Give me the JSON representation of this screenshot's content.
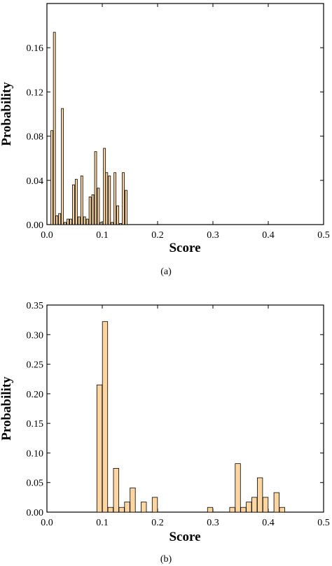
{
  "chart_data": [
    {
      "type": "bar",
      "caption": "(a)",
      "xlabel": "Score",
      "ylabel": "Probability",
      "xlim": [
        0,
        0.5
      ],
      "ylim": [
        0,
        0.2
      ],
      "xticks": [
        "0.0",
        "0.1",
        "0.2",
        "0.3",
        "0.4",
        "0.5"
      ],
      "yticks": [
        "0.00",
        "0.04",
        "0.08",
        "0.12",
        "0.16"
      ],
      "bar_width": 0.0038,
      "bar_color": "#fcd5a0",
      "x": [
        0.009,
        0.0135,
        0.018,
        0.023,
        0.028,
        0.033,
        0.038,
        0.043,
        0.048,
        0.053,
        0.058,
        0.063,
        0.068,
        0.073,
        0.078,
        0.083,
        0.088,
        0.093,
        0.098,
        0.104,
        0.108,
        0.113,
        0.118,
        0.123,
        0.128,
        0.133,
        0.138,
        0.143,
        0.148
      ],
      "values": [
        0.085,
        0.174,
        0.008,
        0.01,
        0.105,
        0.002,
        0.005,
        0.005,
        0.036,
        0.041,
        0.007,
        0.044,
        0.007,
        0.005,
        0.025,
        0.027,
        0.066,
        0.033,
        0.002,
        0.069,
        0.047,
        0.044,
        0.002,
        0.047,
        0.017,
        0.001,
        0.047,
        0.031,
        0.0
      ]
    },
    {
      "type": "bar",
      "caption": "(b)",
      "xlabel": "Score",
      "ylabel": "Probability",
      "xlim": [
        0,
        0.5
      ],
      "ylim": [
        0,
        0.35
      ],
      "xticks": [
        "0.0",
        "0.1",
        "0.2",
        "0.3",
        "0.4",
        "0.5"
      ],
      "yticks": [
        "0.00",
        "0.05",
        "0.10",
        "0.15",
        "0.20",
        "0.25",
        "0.30",
        "0.35"
      ],
      "bar_width": 0.0095,
      "bar_color": "#fcd5a0",
      "x": [
        0.095,
        0.105,
        0.115,
        0.125,
        0.135,
        0.145,
        0.155,
        0.175,
        0.195,
        0.295,
        0.335,
        0.345,
        0.355,
        0.365,
        0.375,
        0.385,
        0.395,
        0.415,
        0.425
      ],
      "values": [
        0.215,
        0.322,
        0.008,
        0.074,
        0.008,
        0.017,
        0.041,
        0.017,
        0.025,
        0.008,
        0.008,
        0.082,
        0.008,
        0.017,
        0.025,
        0.058,
        0.025,
        0.033,
        0.008
      ]
    }
  ]
}
